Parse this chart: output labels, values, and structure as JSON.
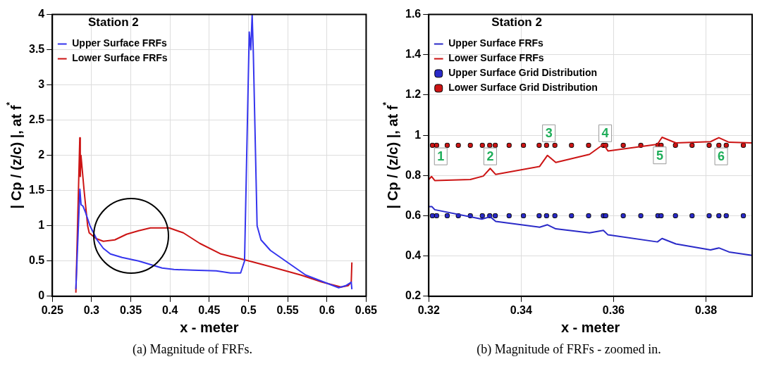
{
  "chart_data": [
    {
      "type": "line",
      "xlabel": "x - meter",
      "ylabel": "| Cp / (z/c) |, at f$^{*}$",
      "legend_title": "Station 2",
      "legend": "top left",
      "grid": true,
      "xlim": [
        0.25,
        0.65
      ],
      "xticks": [
        0.25,
        0.3,
        0.35,
        0.4,
        0.45,
        0.5,
        0.55,
        0.6,
        0.65
      ],
      "ylim": [
        0,
        4
      ],
      "yticks": [
        0,
        0.5,
        1,
        1.5,
        2,
        2.5,
        3,
        3.5,
        4
      ],
      "annotations": [
        "(a) Magnitude of FRFs."
      ],
      "series": [
        {
          "name": "Upper Surface FRFs",
          "color": "#3535ee",
          "marker": "none",
          "x": [
            0.28,
            0.2851,
            0.2866,
            0.289,
            0.292,
            0.298,
            0.307,
            0.315,
            0.324,
            0.339,
            0.36,
            0.375,
            0.39,
            0.405,
            0.429,
            0.459,
            0.477,
            0.49,
            0.495,
            0.501,
            0.503,
            0.5047,
            0.5062,
            0.511,
            0.516,
            0.528,
            0.573,
            0.615,
            0.624,
            0.631,
            0.6318
          ],
          "values": [
            0.1,
            1.52,
            1.3,
            1.28,
            1.2,
            1.0,
            0.8,
            0.68,
            0.6,
            0.55,
            0.5,
            0.45,
            0.4,
            0.38,
            0.37,
            0.36,
            0.33,
            0.33,
            0.5,
            3.75,
            3.5,
            4.0,
            3.45,
            1.0,
            0.8,
            0.65,
            0.3,
            0.12,
            0.15,
            0.2,
            0.1
          ]
        },
        {
          "name": "Lower Surface FRFs",
          "color": "#cc1414",
          "marker": "none",
          "x": [
            0.28,
            0.285,
            0.2856,
            0.2865,
            0.2905,
            0.295,
            0.297,
            0.3055,
            0.315,
            0.3296,
            0.3446,
            0.36,
            0.375,
            0.399,
            0.417,
            0.438,
            0.465,
            0.501,
            0.528,
            0.567,
            0.594,
            0.618,
            0.627,
            0.631,
            0.6318
          ],
          "values": [
            0.05,
            2.25,
            1.7,
            2.0,
            1.5,
            1.0,
            0.9,
            0.82,
            0.78,
            0.8,
            0.88,
            0.93,
            0.97,
            0.97,
            0.9,
            0.75,
            0.6,
            0.5,
            0.42,
            0.3,
            0.2,
            0.13,
            0.15,
            0.2,
            0.48
          ]
        }
      ]
    },
    {
      "type": "line",
      "xlabel": "x - meter",
      "ylabel": "| Cp / (z/c) |, at f$^{*}$",
      "legend_title": "Station 2",
      "legend": "top left",
      "grid": true,
      "xlim": [
        0.32,
        0.39
      ],
      "xticks": [
        0.32,
        0.34,
        0.36,
        0.38
      ],
      "ylim": [
        0.2,
        1.6
      ],
      "yticks": [
        0.2,
        0.4,
        0.6,
        0.8,
        1,
        1.2,
        1.4,
        1.6
      ],
      "annotations": [
        {
          "text": "1",
          "x": 0.3226,
          "y": 0.895
        },
        {
          "text": "2",
          "x": 0.3333,
          "y": 0.895
        },
        {
          "text": "3",
          "x": 0.346,
          "y": 1.01
        },
        {
          "text": "4",
          "x": 0.3582,
          "y": 1.01
        },
        {
          "text": "5",
          "x": 0.37,
          "y": 0.9
        },
        {
          "text": "6",
          "x": 0.3833,
          "y": 0.895
        },
        "(b) Magnitude of FRFs - zoomed in."
      ],
      "series": [
        {
          "name": "Upper Surface FRFs",
          "color": "#2a2ac8",
          "marker": "none",
          "x": [
            0.32,
            0.3207,
            0.3213,
            0.3315,
            0.3333,
            0.3345,
            0.344,
            0.3457,
            0.3475,
            0.3548,
            0.3578,
            0.3588,
            0.3695,
            0.3705,
            0.3735,
            0.381,
            0.3828,
            0.385,
            0.39
          ],
          "values": [
            0.645,
            0.645,
            0.63,
            0.583,
            0.595,
            0.572,
            0.543,
            0.555,
            0.535,
            0.515,
            0.527,
            0.505,
            0.47,
            0.487,
            0.46,
            0.43,
            0.44,
            0.42,
            0.403
          ]
        },
        {
          "name": "Lower Surface FRFs",
          "color": "#cc1414",
          "marker": "none",
          "x": [
            0.32,
            0.3206,
            0.3213,
            0.329,
            0.3318,
            0.3333,
            0.3345,
            0.344,
            0.3457,
            0.3475,
            0.3548,
            0.3578,
            0.3588,
            0.3695,
            0.3705,
            0.3735,
            0.381,
            0.3828,
            0.385,
            0.39
          ],
          "values": [
            0.78,
            0.795,
            0.775,
            0.78,
            0.797,
            0.835,
            0.805,
            0.845,
            0.9,
            0.865,
            0.905,
            0.955,
            0.922,
            0.955,
            0.99,
            0.962,
            0.968,
            0.988,
            0.965,
            0.962
          ]
        },
        {
          "name": "Upper Surface Grid Distribution",
          "type": "scatter",
          "color": "#2a2ac8",
          "marker": "square",
          "x": [
            0.3208,
            0.3217,
            0.324,
            0.3264,
            0.329,
            0.3316,
            0.3332,
            0.3344,
            0.3374,
            0.3405,
            0.3439,
            0.3455,
            0.3473,
            0.3509,
            0.3546,
            0.3578,
            0.3583,
            0.3621,
            0.3659,
            0.3696,
            0.3703,
            0.3734,
            0.377,
            0.3807,
            0.3828,
            0.3844,
            0.3881
          ],
          "values": [
            0.6,
            0.6,
            0.6,
            0.6,
            0.6,
            0.6,
            0.6,
            0.6,
            0.6,
            0.6,
            0.6,
            0.6,
            0.6,
            0.6,
            0.6,
            0.6,
            0.6,
            0.6,
            0.6,
            0.6,
            0.6,
            0.6,
            0.6,
            0.6,
            0.6,
            0.6,
            0.6
          ]
        },
        {
          "name": "Lower Surface Grid Distribution",
          "type": "scatter",
          "color": "#cc1414",
          "marker": "square",
          "x": [
            0.3208,
            0.3217,
            0.324,
            0.3264,
            0.329,
            0.3316,
            0.3332,
            0.3344,
            0.3374,
            0.3405,
            0.3439,
            0.3455,
            0.3473,
            0.3509,
            0.3546,
            0.3578,
            0.3583,
            0.3621,
            0.3659,
            0.3696,
            0.3703,
            0.3734,
            0.377,
            0.3807,
            0.3828,
            0.3844,
            0.3881
          ],
          "values": [
            0.95,
            0.95,
            0.95,
            0.95,
            0.95,
            0.95,
            0.95,
            0.95,
            0.95,
            0.95,
            0.95,
            0.95,
            0.95,
            0.95,
            0.95,
            0.95,
            0.95,
            0.95,
            0.95,
            0.95,
            0.95,
            0.95,
            0.95,
            0.95,
            0.95,
            0.95,
            0.95
          ]
        }
      ]
    }
  ]
}
